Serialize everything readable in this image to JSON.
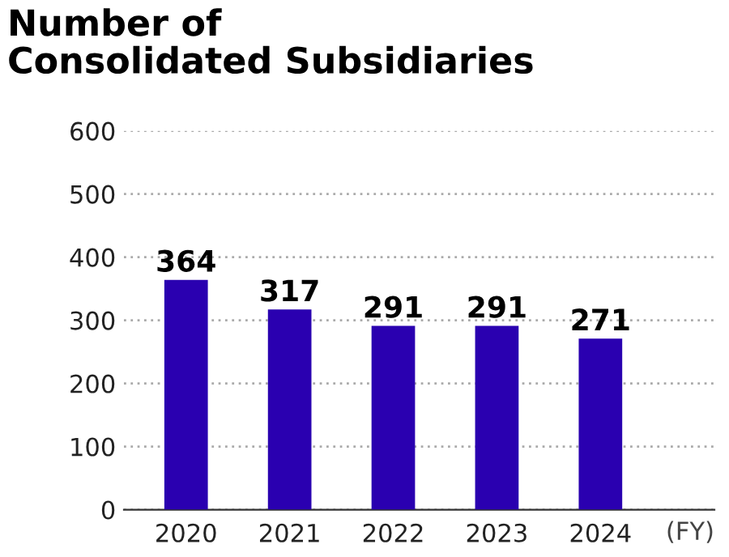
{
  "chart_data": {
    "type": "bar",
    "title": "Number of\nConsolidated Subsidiaries",
    "xlabel": "(FY)",
    "categories": [
      "2020",
      "2021",
      "2022",
      "2023",
      "2024"
    ],
    "values": [
      364,
      317,
      291,
      291,
      271
    ],
    "color": "#2a00b0",
    "ylim": [
      0,
      600
    ],
    "yticks": [
      0,
      100,
      200,
      300,
      400,
      500,
      600
    ],
    "grid": "y",
    "data_labels": true
  }
}
